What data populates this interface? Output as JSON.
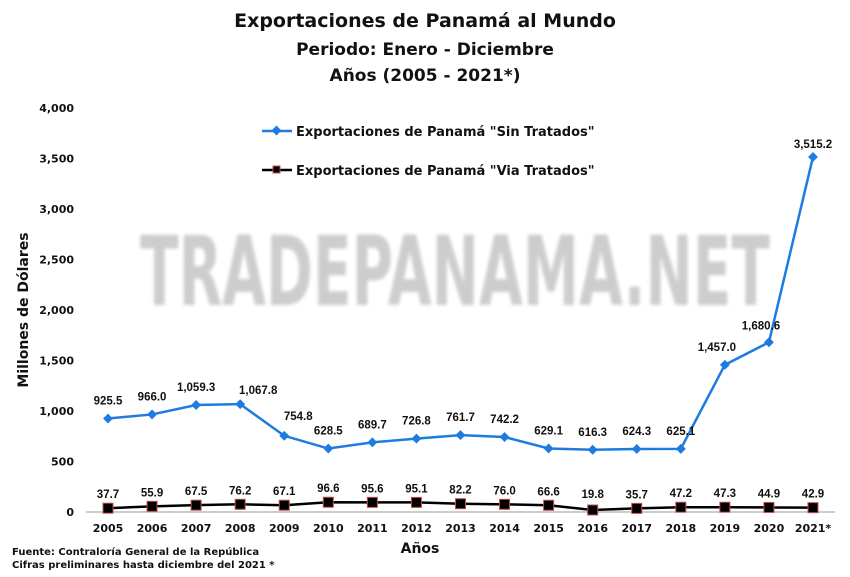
{
  "chart_data": {
    "type": "line",
    "title": "Exportaciones de Panamá al Mundo",
    "subtitle": [
      "Periodo:  Enero - Diciembre",
      "Años (2005 - 2021*)"
    ],
    "xlabel": "Años",
    "ylabel": "Millones  de Dólares",
    "ylim": [
      0,
      4000
    ],
    "yticks": [
      "0",
      "500",
      "1,000",
      "1,500",
      "2,000",
      "2,500",
      "3,000",
      "3,500",
      "4,000"
    ],
    "categories": [
      "2005",
      "2006",
      "2007",
      "2008",
      "2009",
      "2010",
      "2011",
      "2012",
      "2013",
      "2014",
      "2015",
      "2016",
      "2017",
      "2018",
      "2019",
      "2020",
      "2021*"
    ],
    "grid": false,
    "legend_position": "top",
    "series": [
      {
        "name": "Exportaciones de Panamá \"Sin Tratados\"",
        "color": "#1e7be0",
        "marker": "diamond",
        "values": [
          925.5,
          966.0,
          1059.3,
          1067.8,
          754.8,
          628.5,
          689.7,
          726.8,
          761.7,
          742.2,
          629.1,
          616.3,
          624.3,
          625.1,
          1457.0,
          1680.6,
          3515.2
        ],
        "labels": [
          "925.5",
          "966.0",
          "1,059.3",
          "1,067.8",
          "754.8",
          "628.5",
          "689.7",
          "726.8",
          "761.7",
          "742.2",
          "629.1",
          "616.3",
          "624.3",
          "625.1",
          "1,457.0",
          "1,680.6",
          "3,515.2"
        ]
      },
      {
        "name": "Exportaciones de Panamá \"Via Tratados\"",
        "color": "#000000",
        "marker": "square",
        "marker_edge": "#c0504d",
        "values": [
          37.7,
          55.9,
          67.5,
          76.2,
          67.1,
          96.6,
          95.6,
          95.1,
          82.2,
          76.0,
          66.6,
          19.8,
          35.7,
          47.2,
          47.3,
          44.9,
          42.9
        ],
        "labels": [
          "37.7",
          "55.9",
          "67.5",
          "76.2",
          "67.1",
          "96.6",
          "95.6",
          "95.1",
          "82.2",
          "76.0",
          "66.6",
          "19.8",
          "35.7",
          "47.2",
          "47.3",
          "44.9",
          "42.9"
        ]
      }
    ],
    "watermark": "TRADEPANAMA.NET"
  },
  "footer": {
    "source": "Fuente: Contraloría General  de la República",
    "note": "Cifras preliminares hasta diciembre del 2021 *"
  }
}
